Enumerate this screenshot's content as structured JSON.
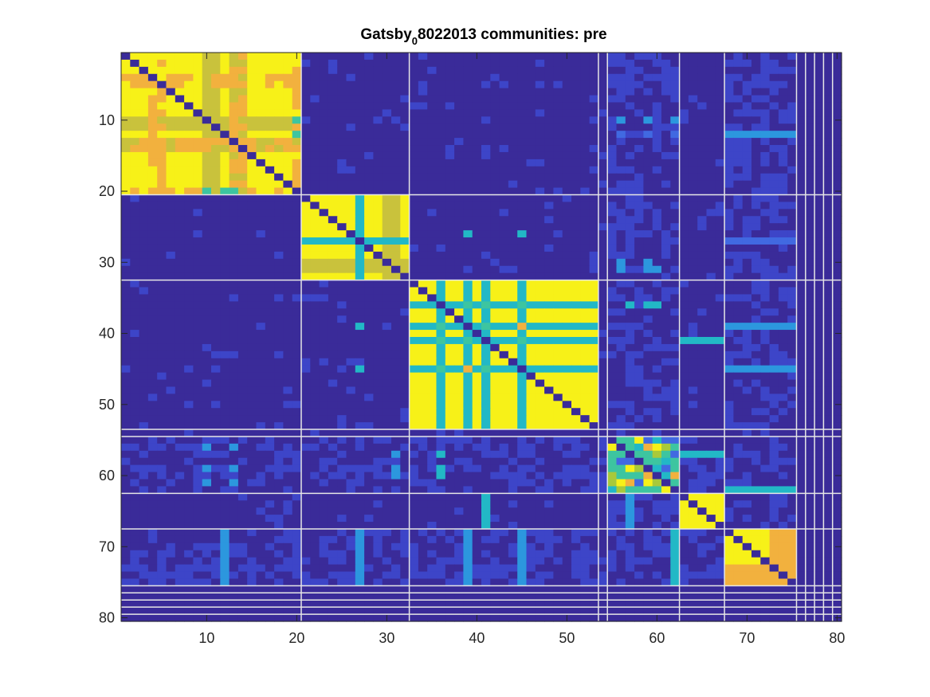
{
  "chart_data": {
    "type": "heatmap",
    "title_main": "Gatsby",
    "title_sub": "0",
    "title_rest": "8022013 communities: pre",
    "xlim": [
      0.5,
      80.5
    ],
    "ylim": [
      0.5,
      80.5
    ],
    "y_reversed": true,
    "grid": false,
    "xticks": [
      10,
      20,
      30,
      40,
      50,
      60,
      70,
      80
    ],
    "yticks": [
      10,
      20,
      30,
      40,
      50,
      60,
      70,
      80
    ],
    "n": 80,
    "colormap": "parula",
    "colors": {
      "background_dark": "#3a2b99",
      "blue_mid": "#3d45c8",
      "blue_bright": "#4169e1",
      "cyan_blue": "#2c97de",
      "cyan": "#22b8c6",
      "teal": "#3dc5a0",
      "green_yellow": "#a8c93a",
      "olive": "#c9c23c",
      "orange": "#f2b13e",
      "yellow": "#f7f118",
      "separator_line": "#e6e6e6"
    },
    "communities": [
      {
        "start": 1,
        "end": 20
      },
      {
        "start": 21,
        "end": 32
      },
      {
        "start": 33,
        "end": 53
      },
      {
        "start": 54,
        "end": 54
      },
      {
        "start": 55,
        "end": 62
      },
      {
        "start": 63,
        "end": 67
      },
      {
        "start": 68,
        "end": 75
      },
      {
        "start": 76,
        "end": 76
      },
      {
        "start": 77,
        "end": 77
      },
      {
        "start": 78,
        "end": 78
      },
      {
        "start": 79,
        "end": 79
      },
      {
        "start": 80,
        "end": 80
      }
    ],
    "boundaries": [
      20.5,
      32.5,
      53.5,
      54.5,
      62.5,
      67.5,
      75.5,
      76.5,
      77.5,
      78.5,
      79.5
    ],
    "block_features": [
      {
        "block": 1,
        "dim_cols": [
          10,
          11,
          13,
          14
        ],
        "orange_cols": [
          4,
          5,
          13,
          14,
          20
        ],
        "teal_cells": [
          [
            10,
            20
          ],
          [
            12,
            20
          ],
          [
            20,
            10
          ],
          [
            20,
            12
          ],
          [
            20,
            13
          ]
        ]
      },
      {
        "block": 2,
        "cyan_rows": [
          27
        ],
        "cyan_cols": [
          27
        ],
        "olive_cols": [
          30,
          31
        ]
      },
      {
        "block": 3,
        "cyan_rows": [
          36,
          39,
          41,
          45
        ],
        "cyan_cols": [
          36,
          39,
          41,
          45
        ],
        "orange_cells": [
          [
            39,
            45
          ],
          [
            45,
            39
          ]
        ]
      },
      {
        "block": 5,
        "mixed": true
      },
      {
        "block": 6
      },
      {
        "block": 7,
        "orange_rows": [
          73,
          74,
          75
        ]
      }
    ],
    "offdiag_cyan_bars": [
      {
        "rows": [
          12,
          12
        ],
        "cols": [
          68,
          75
        ],
        "color": "cyan_blue"
      },
      {
        "rows": [
          39,
          39
        ],
        "cols": [
          68,
          75
        ],
        "color": "cyan_blue"
      },
      {
        "rows": [
          45,
          45
        ],
        "cols": [
          68,
          75
        ],
        "color": "cyan_blue"
      },
      {
        "rows": [
          41,
          41
        ],
        "cols": [
          63,
          67
        ],
        "color": "cyan"
      },
      {
        "rows": [
          57,
          57
        ],
        "cols": [
          63,
          67
        ],
        "color": "cyan"
      },
      {
        "rows": [
          62,
          62
        ],
        "cols": [
          68,
          75
        ],
        "color": "cyan"
      },
      {
        "rows": [
          63,
          67
        ],
        "cols": [
          41,
          41
        ],
        "color": "cyan"
      },
      {
        "rows": [
          63,
          67
        ],
        "cols": [
          57,
          57
        ],
        "color": "cyan_blue"
      },
      {
        "rows": [
          68,
          75
        ],
        "cols": [
          12,
          12
        ],
        "color": "cyan_blue"
      },
      {
        "rows": [
          68,
          75
        ],
        "cols": [
          27,
          27
        ],
        "color": "cyan_blue"
      },
      {
        "rows": [
          68,
          75
        ],
        "cols": [
          39,
          39
        ],
        "color": "cyan_blue"
      },
      {
        "rows": [
          68,
          75
        ],
        "cols": [
          45,
          45
        ],
        "color": "cyan_blue"
      },
      {
        "rows": [
          68,
          75
        ],
        "cols": [
          62,
          62
        ],
        "color": "cyan"
      },
      {
        "rows": [
          27,
          27
        ],
        "cols": [
          68,
          75
        ],
        "color": "blue_bright"
      }
    ],
    "offdiag_spots": [
      {
        "row": 10,
        "col": 56,
        "color": "cyan_blue"
      },
      {
        "row": 10,
        "col": 59,
        "color": "cyan_blue"
      },
      {
        "row": 10,
        "col": 62,
        "color": "cyan_blue"
      },
      {
        "row": 12,
        "col": 56,
        "color": "blue_bright"
      },
      {
        "row": 12,
        "col": 59,
        "color": "blue_bright"
      },
      {
        "row": 12,
        "col": 62,
        "color": "blue_bright"
      },
      {
        "row": 56,
        "col": 10,
        "color": "cyan_blue"
      },
      {
        "row": 56,
        "col": 13,
        "color": "cyan_blue"
      },
      {
        "row": 59,
        "col": 10,
        "color": "cyan_blue"
      },
      {
        "row": 59,
        "col": 13,
        "color": "cyan_blue"
      },
      {
        "row": 61,
        "col": 10,
        "color": "cyan_blue"
      },
      {
        "row": 61,
        "col": 13,
        "color": "cyan_blue"
      },
      {
        "row": 26,
        "col": 39,
        "color": "cyan"
      },
      {
        "row": 26,
        "col": 45,
        "color": "cyan"
      },
      {
        "row": 39,
        "col": 27,
        "color": "cyan"
      },
      {
        "row": 45,
        "col": 27,
        "color": "cyan"
      },
      {
        "row": 57,
        "col": 36,
        "color": "cyan"
      },
      {
        "row": 59,
        "col": 36,
        "color": "cyan"
      },
      {
        "row": 60,
        "col": 36,
        "color": "cyan"
      },
      {
        "row": 36,
        "col": 57,
        "color": "cyan"
      },
      {
        "row": 36,
        "col": 59,
        "color": "cyan"
      },
      {
        "row": 36,
        "col": 60,
        "color": "cyan"
      },
      {
        "row": 31,
        "col": 56,
        "color": "cyan_blue"
      },
      {
        "row": 31,
        "col": 59,
        "color": "cyan_blue"
      },
      {
        "row": 31,
        "col": 60,
        "color": "cyan_blue"
      },
      {
        "row": 30,
        "col": 56,
        "color": "cyan_blue"
      },
      {
        "row": 30,
        "col": 59,
        "color": "cyan_blue"
      },
      {
        "row": 57,
        "col": 31,
        "color": "cyan_blue"
      },
      {
        "row": 59,
        "col": 31,
        "color": "cyan_blue"
      },
      {
        "row": 60,
        "col": 31,
        "color": "cyan_blue"
      }
    ]
  }
}
